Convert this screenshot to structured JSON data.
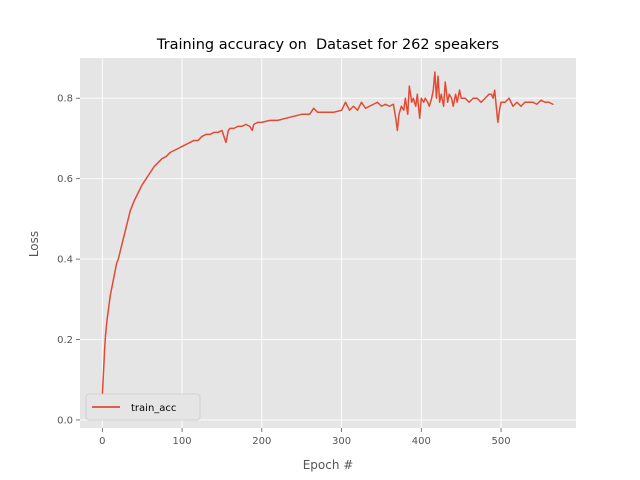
{
  "chart_data": {
    "type": "line",
    "title": "Training accuracy on  Dataset for 262 speakers",
    "xlabel": "Epoch #",
    "ylabel": "Loss",
    "xlim": [
      -28,
      594
    ],
    "ylim": [
      -0.02,
      0.9
    ],
    "xticks": [
      0,
      100,
      200,
      300,
      400,
      500
    ],
    "yticks": [
      0.0,
      0.2,
      0.4,
      0.6,
      0.8
    ],
    "ytick_labels": [
      "0.0",
      "0.2",
      "0.4",
      "0.6",
      "0.8"
    ],
    "grid": true,
    "legend": {
      "placement": "lower-left",
      "entries": [
        "train_acc"
      ]
    },
    "colors": {
      "series": "#E24A33",
      "plot_bg": "#E5E5E5",
      "grid": "#FFFFFF"
    },
    "series": [
      {
        "name": "train_acc",
        "x": [
          0,
          1,
          2,
          3,
          4,
          5,
          6,
          8,
          10,
          12,
          15,
          18,
          20,
          25,
          30,
          35,
          40,
          45,
          50,
          55,
          60,
          65,
          70,
          75,
          80,
          85,
          90,
          95,
          100,
          105,
          110,
          115,
          120,
          125,
          130,
          135,
          140,
          145,
          150,
          155,
          158,
          160,
          165,
          170,
          175,
          180,
          185,
          188,
          190,
          195,
          200,
          210,
          220,
          230,
          240,
          250,
          260,
          265,
          270,
          280,
          290,
          300,
          305,
          310,
          315,
          320,
          325,
          330,
          335,
          340,
          345,
          350,
          355,
          360,
          365,
          368,
          370,
          372,
          375,
          378,
          380,
          383,
          385,
          388,
          390,
          393,
          395,
          398,
          400,
          403,
          405,
          408,
          410,
          413,
          415,
          417,
          419,
          421,
          423,
          425,
          428,
          430,
          433,
          435,
          438,
          440,
          443,
          445,
          448,
          450,
          455,
          460,
          465,
          470,
          475,
          480,
          485,
          488,
          490,
          492,
          494,
          496,
          498,
          500,
          505,
          510,
          515,
          520,
          525,
          530,
          535,
          540,
          545,
          550,
          555,
          560,
          565
        ],
        "y": [
          0.06,
          0.1,
          0.14,
          0.18,
          0.21,
          0.23,
          0.25,
          0.28,
          0.31,
          0.33,
          0.36,
          0.39,
          0.4,
          0.44,
          0.48,
          0.52,
          0.545,
          0.565,
          0.585,
          0.6,
          0.615,
          0.63,
          0.64,
          0.65,
          0.655,
          0.665,
          0.67,
          0.675,
          0.68,
          0.685,
          0.69,
          0.695,
          0.695,
          0.705,
          0.71,
          0.71,
          0.715,
          0.715,
          0.72,
          0.69,
          0.72,
          0.725,
          0.725,
          0.73,
          0.73,
          0.735,
          0.73,
          0.72,
          0.735,
          0.74,
          0.74,
          0.745,
          0.745,
          0.75,
          0.755,
          0.76,
          0.76,
          0.775,
          0.765,
          0.765,
          0.765,
          0.77,
          0.79,
          0.77,
          0.78,
          0.77,
          0.79,
          0.775,
          0.78,
          0.785,
          0.79,
          0.78,
          0.785,
          0.78,
          0.785,
          0.75,
          0.72,
          0.76,
          0.78,
          0.77,
          0.8,
          0.76,
          0.83,
          0.79,
          0.8,
          0.78,
          0.81,
          0.75,
          0.8,
          0.79,
          0.8,
          0.79,
          0.78,
          0.8,
          0.82,
          0.865,
          0.8,
          0.855,
          0.79,
          0.81,
          0.78,
          0.84,
          0.79,
          0.81,
          0.8,
          0.78,
          0.81,
          0.79,
          0.82,
          0.8,
          0.8,
          0.79,
          0.8,
          0.8,
          0.79,
          0.8,
          0.81,
          0.81,
          0.8,
          0.82,
          0.78,
          0.74,
          0.77,
          0.79,
          0.79,
          0.8,
          0.78,
          0.79,
          0.78,
          0.79,
          0.79,
          0.79,
          0.785,
          0.795,
          0.79,
          0.79,
          0.785
        ]
      }
    ]
  }
}
